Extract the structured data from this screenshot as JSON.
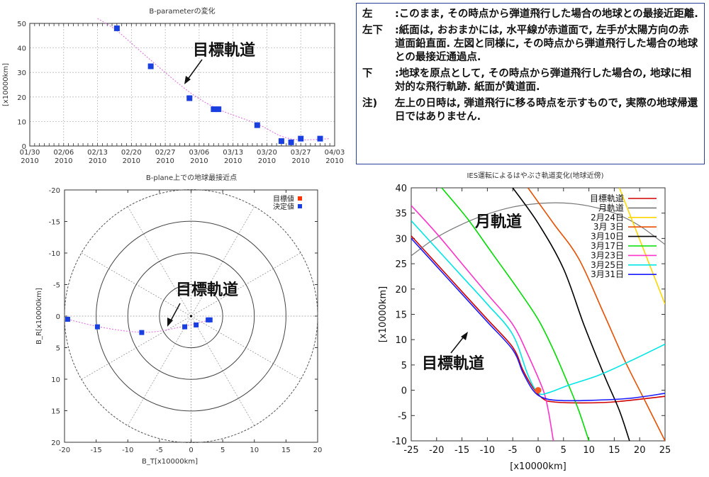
{
  "notes": [
    {
      "key": "左",
      "text": ":このまま, その時点から弾道飛行した場合の地球との最接近距離."
    },
    {
      "key": "左下",
      "text": ":紙面は, おおまかには, 水平線が赤道面で, 左手が太陽方向の赤道面鉛直面. 左図と同様に, その時点から弾道飛行した場合の地球との最接近通過点."
    },
    {
      "key": "下",
      "text": ":地球を原点として, その時点から弾道飛行した場合の, 地球に相対的な飛行軌跡. 紙面が黄道面."
    },
    {
      "key": "注)",
      "text": "左上の日時は, 弾道飛行に移る時点を示すもので, 実際の地球帰還日ではありません."
    }
  ],
  "chart_data": [
    {
      "type": "scatter",
      "title": "B-parameterの変化",
      "xlabel": "",
      "ylabel": "[x10000km]",
      "ylim": [
        0,
        50
      ],
      "xticks": [
        {
          "x": 0,
          "line1": "01/30",
          "line2": "2010"
        },
        {
          "x": 7,
          "line1": "02/06",
          "line2": "2010"
        },
        {
          "x": 14,
          "line1": "02/13",
          "line2": "2010"
        },
        {
          "x": 21,
          "line1": "02/20",
          "line2": "2010"
        },
        {
          "x": 28,
          "line1": "02/27",
          "line2": "2010"
        },
        {
          "x": 35,
          "line1": "03/06",
          "line2": "2010"
        },
        {
          "x": 42,
          "line1": "03/13",
          "line2": "2010"
        },
        {
          "x": 49,
          "line1": "03/20",
          "line2": "2010"
        },
        {
          "x": 56,
          "line1": "03/27",
          "line2": "2010"
        },
        {
          "x": 63,
          "line1": "04/03",
          "line2": "2010"
        }
      ],
      "yticks": [
        0,
        10,
        20,
        30,
        40,
        50
      ],
      "xlim": [
        0,
        63
      ],
      "points_dates": [
        "02/17",
        "02/24",
        "03/04",
        "03/09",
        "03/10",
        "03/18",
        "03/23",
        "03/25",
        "03/27",
        "03/31"
      ],
      "points": [
        [
          18,
          48
        ],
        [
          25,
          32.5
        ],
        [
          33,
          19.5
        ],
        [
          38,
          15
        ],
        [
          39,
          15
        ],
        [
          47,
          8.5
        ],
        [
          52,
          2
        ],
        [
          54,
          1.5
        ],
        [
          56,
          3
        ],
        [
          60,
          3
        ]
      ],
      "curve": [
        [
          14,
          52
        ],
        [
          18,
          47
        ],
        [
          25,
          35
        ],
        [
          33,
          22
        ],
        [
          39,
          15
        ],
        [
          47,
          9
        ],
        [
          52,
          4
        ],
        [
          56,
          2.5
        ],
        [
          62,
          3
        ]
      ],
      "annotation": "目標軌道",
      "point_color": "#1a3fe0",
      "curve_color": "#e080e0"
    },
    {
      "type": "scatter",
      "title": "B-plane上での地球最接近点",
      "xlabel": "B_T[x10000km]",
      "ylabel": "B_R[x10000km]",
      "xlim": [
        -20,
        20
      ],
      "ylim": [
        -20,
        20
      ],
      "xticks": [
        -20,
        -15,
        -10,
        -5,
        0,
        5,
        10,
        15,
        20
      ],
      "yticks": [
        -20,
        -15,
        -10,
        -5,
        0,
        5,
        10,
        15,
        20
      ],
      "y_inverted": true,
      "circles": [
        5,
        10,
        15,
        20
      ],
      "legend": [
        {
          "label": "目標値",
          "color": "#ff3300"
        },
        {
          "label": "決定値",
          "color": "#1a3fe0"
        }
      ],
      "points": [
        [
          -19.5,
          0.5
        ],
        [
          -14.8,
          1.7
        ],
        [
          -7.8,
          2.6
        ],
        [
          -1,
          1.7
        ],
        [
          0.8,
          1.4
        ],
        [
          2.7,
          0.6
        ],
        [
          3.0,
          0.6
        ]
      ],
      "curve": [
        [
          -19.5,
          0.5
        ],
        [
          -15,
          1.6
        ],
        [
          -10,
          2.4
        ],
        [
          -6,
          2.5
        ],
        [
          -2,
          1.8
        ],
        [
          1,
          1.1
        ],
        [
          3,
          0.6
        ]
      ],
      "annotation": "目標軌道",
      "point_color": "#1a3fe0",
      "curve_color": "#e080e0"
    },
    {
      "type": "line",
      "title": "IES運転によるはやぶさ軌道変化(地球近傍)",
      "xlabel": "[x10000km]",
      "ylabel": "[x10000km]",
      "xlim": [
        -25,
        25
      ],
      "ylim": [
        -10,
        40
      ],
      "xticks": [
        -25,
        -20,
        -15,
        -10,
        -5,
        0,
        5,
        10,
        15,
        20,
        25
      ],
      "yticks": [
        -10,
        -5,
        0,
        5,
        10,
        15,
        20,
        25,
        30,
        35,
        40
      ],
      "legend_position": "top-right",
      "annotation_moon": "月軌道",
      "annotation_target": "目標軌道",
      "earth_color": "#ff5a1f",
      "series": [
        {
          "name": "目標軌道",
          "color": "#d00000",
          "points": [
            [
              -25,
              30.5
            ],
            [
              -20,
              25
            ],
            [
              -15,
              19.5
            ],
            [
              -10,
              14
            ],
            [
              -5,
              8.5
            ],
            [
              -3,
              4
            ],
            [
              -1,
              0.5
            ],
            [
              1,
              -1.7
            ],
            [
              3,
              -2.3
            ],
            [
              8,
              -2.5
            ],
            [
              15,
              -2.3
            ],
            [
              25,
              -1.2
            ]
          ]
        },
        {
          "name": "月軌道",
          "color": "#777777",
          "points": [
            [
              -25,
              26.6
            ],
            [
              -20,
              30.2
            ],
            [
              -15,
              32.8
            ],
            [
              -10,
              34.8
            ],
            [
              -5,
              36.2
            ],
            [
              0,
              36.9
            ],
            [
              5,
              37
            ],
            [
              10,
              36.4
            ],
            [
              15,
              35
            ],
            [
              20,
              32.5
            ],
            [
              25,
              28.8
            ]
          ]
        },
        {
          "name": "2月24日",
          "color": "#ffd700",
          "points": [
            [
              16,
              40
            ],
            [
              25,
              17
            ]
          ]
        },
        {
          "name": "3月 3日",
          "color": "#e85000",
          "points": [
            [
              -2,
              40
            ],
            [
              3,
              33
            ],
            [
              8,
              26
            ],
            [
              13,
              15
            ],
            [
              17,
              6
            ],
            [
              21,
              -2
            ],
            [
              25,
              -10
            ]
          ]
        },
        {
          "name": "3月10日",
          "color": "#000000",
          "points": [
            [
              -5,
              40
            ],
            [
              0,
              33
            ],
            [
              5,
              24
            ],
            [
              9,
              13
            ],
            [
              13,
              3
            ],
            [
              16,
              -4
            ],
            [
              18,
              -10
            ]
          ]
        },
        {
          "name": "3月17日",
          "color": "#00dd00",
          "points": [
            [
              -19,
              40
            ],
            [
              -14,
              34
            ],
            [
              -9,
              27
            ],
            [
              -4,
              20
            ],
            [
              0,
              14
            ],
            [
              3,
              8
            ],
            [
              6,
              1
            ],
            [
              8,
              -4
            ],
            [
              10,
              -10
            ]
          ]
        },
        {
          "name": "3月23日",
          "color": "#ff33cc",
          "points": [
            [
              -25,
              36.5
            ],
            [
              -20,
              31
            ],
            [
              -15,
              25
            ],
            [
              -10,
              19
            ],
            [
              -5,
              13
            ],
            [
              -2,
              7
            ],
            [
              1,
              0
            ],
            [
              2,
              -4
            ],
            [
              3,
              -10
            ]
          ]
        },
        {
          "name": "3月25日",
          "color": "#00e5e5",
          "points": [
            [
              -25,
              33.5
            ],
            [
              -20,
              28
            ],
            [
              -15,
              22.5
            ],
            [
              -10,
              17
            ],
            [
              -5,
              11
            ],
            [
              -2,
              3
            ],
            [
              0,
              -0.5
            ],
            [
              2,
              -0.5
            ],
            [
              6,
              1
            ],
            [
              12,
              3
            ],
            [
              18,
              5.7
            ],
            [
              25,
              9.1
            ]
          ]
        },
        {
          "name": "3月31日",
          "color": "#1a1aff",
          "points": [
            [
              -25,
              30
            ],
            [
              -20,
              24.5
            ],
            [
              -15,
              19
            ],
            [
              -10,
              13.5
            ],
            [
              -5,
              8
            ],
            [
              -3,
              3.5
            ],
            [
              -1,
              0
            ],
            [
              1,
              -1.5
            ],
            [
              4,
              -2
            ],
            [
              10,
              -2
            ],
            [
              18,
              -1.6
            ],
            [
              25,
              -0.6
            ]
          ]
        }
      ]
    }
  ]
}
